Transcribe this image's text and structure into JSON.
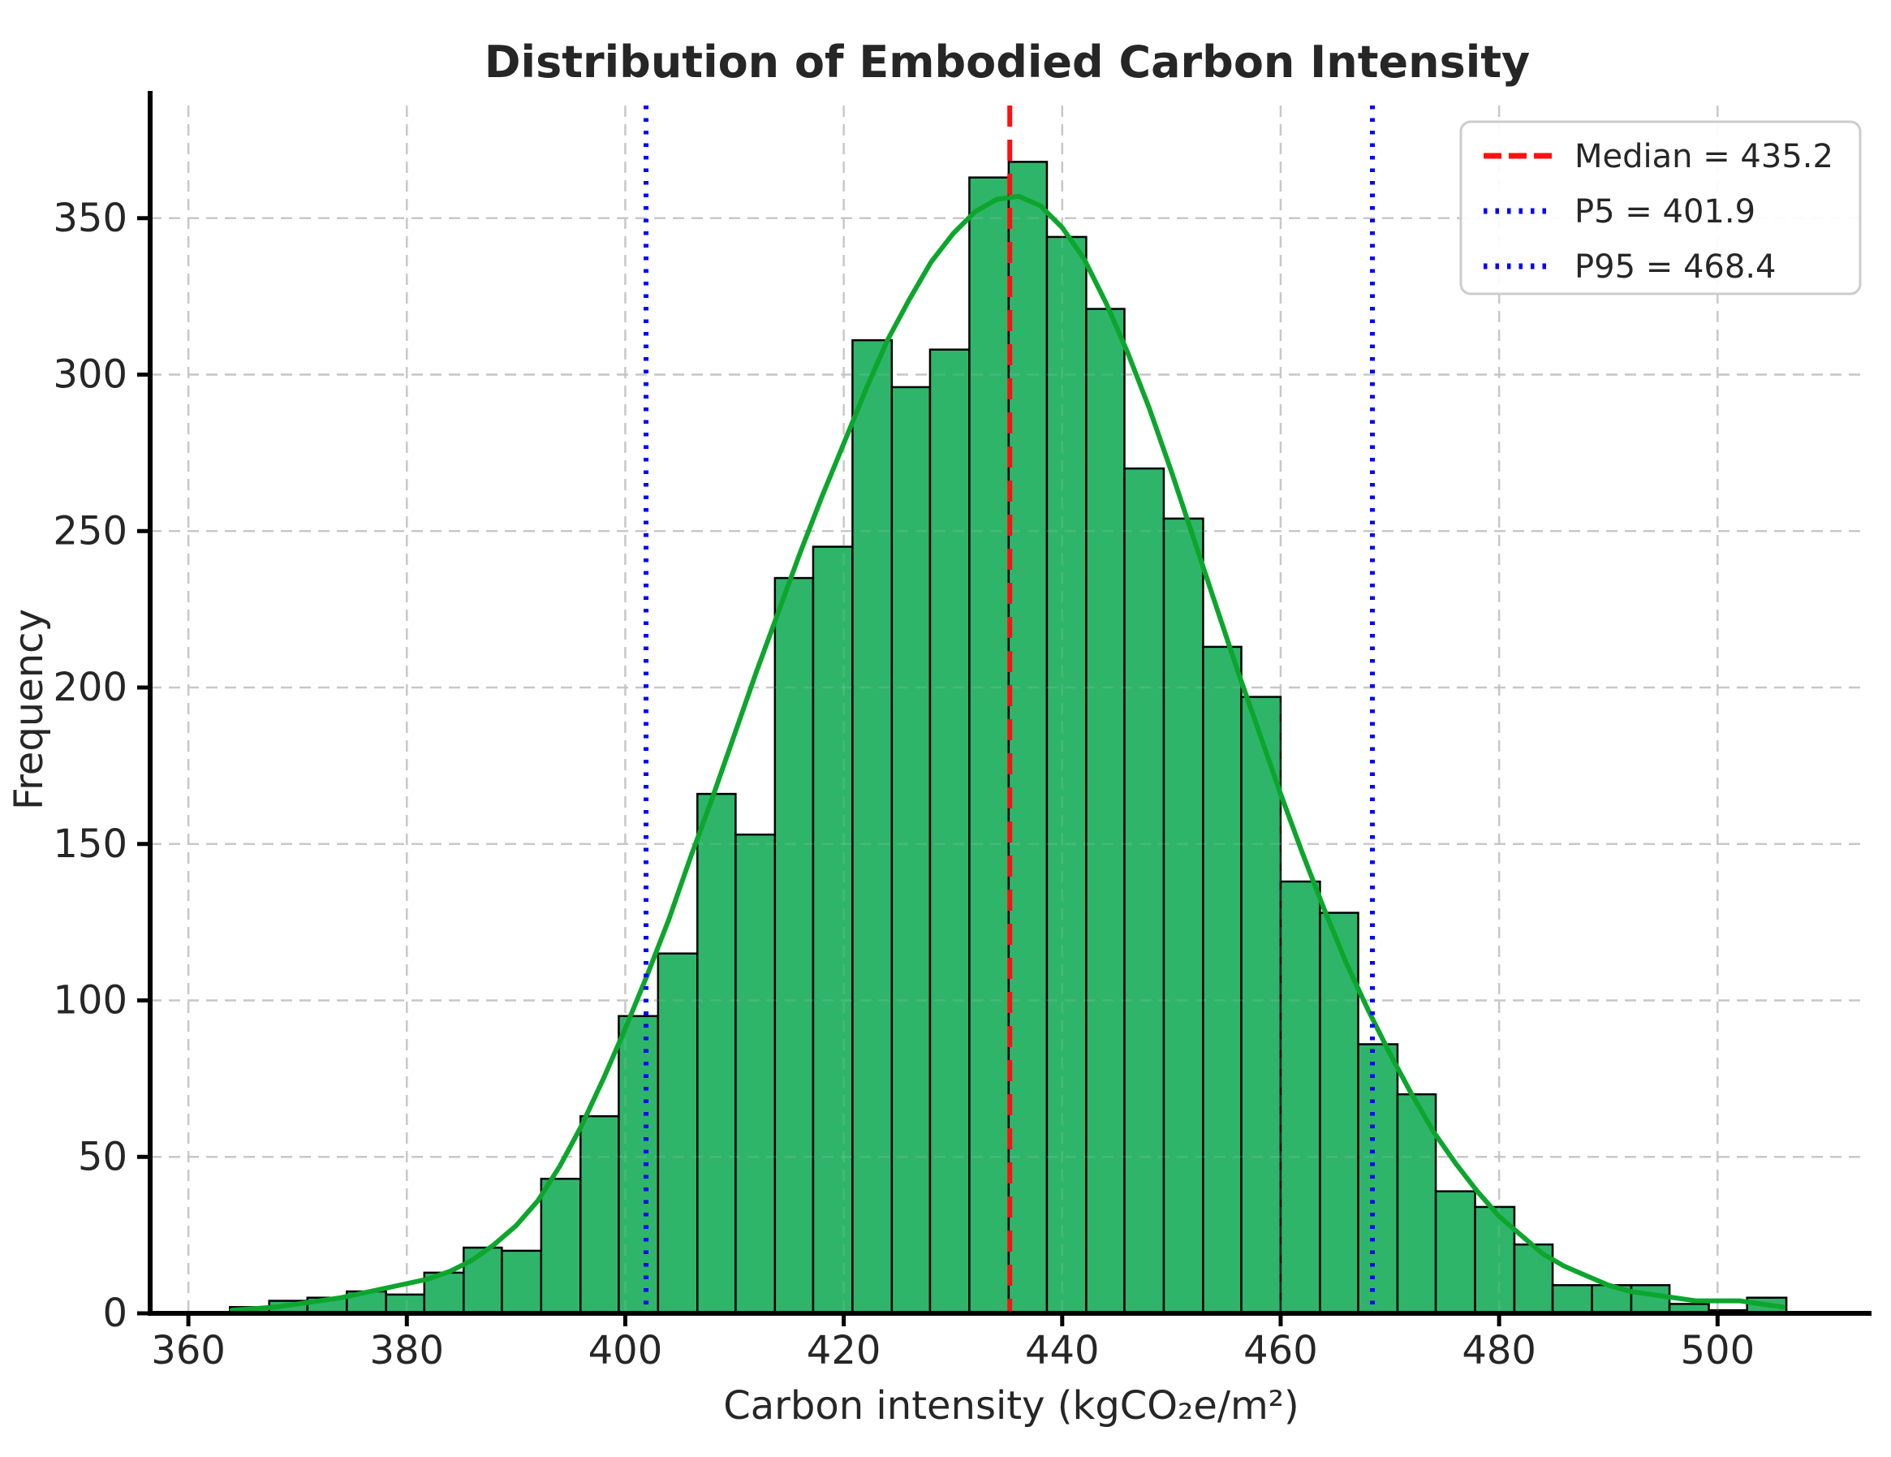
{
  "title": "Distribution of Embodied Carbon Intensity",
  "axes": {
    "xlabel": "Carbon intensity (kgCO₂e/m²)",
    "ylabel": "Frequency",
    "x_ticks": [
      360,
      380,
      400,
      420,
      440,
      460,
      480,
      500
    ],
    "y_ticks": [
      0,
      50,
      100,
      150,
      200,
      250,
      300,
      350
    ]
  },
  "legend": {
    "items": [
      {
        "name": "median",
        "label": "Median = 435.2",
        "color": "#ff1111",
        "style": "dashed"
      },
      {
        "name": "p5",
        "label": "P5 = 401.9",
        "color": "#0000ff",
        "style": "dotted"
      },
      {
        "name": "p95",
        "label": "P95 = 468.4",
        "color": "#0000ff",
        "style": "dotted"
      }
    ]
  },
  "chart_data": {
    "type": "bar",
    "subtype": "histogram-with-kde",
    "title": "Distribution of Embodied Carbon Intensity",
    "xlabel": "Carbon intensity (kgCO₂e/m²)",
    "ylabel": "Frequency",
    "xlim": [
      356.5,
      513.5
    ],
    "ylim": [
      0,
      386
    ],
    "grid": "dashed-both-axes",
    "legend_position": "upper-right",
    "bin_edges": [
      363.8,
      367.4,
      370.9,
      374.5,
      378.1,
      381.6,
      385.2,
      388.7,
      392.3,
      395.9,
      399.4,
      403.0,
      406.6,
      410.1,
      413.7,
      417.2,
      420.8,
      424.4,
      427.9,
      431.5,
      435.1,
      438.6,
      442.2,
      445.7,
      449.3,
      452.9,
      456.4,
      460.0,
      463.6,
      467.1,
      470.7,
      474.2,
      477.8,
      481.4,
      484.9,
      488.5,
      492.1,
      495.6,
      499.2,
      502.7,
      506.3
    ],
    "frequencies": [
      2,
      4,
      5,
      7,
      6,
      13,
      21,
      20,
      43,
      63,
      95,
      115,
      166,
      153,
      235,
      245,
      311,
      296,
      308,
      363,
      368,
      344,
      321,
      270,
      254,
      213,
      197,
      138,
      128,
      86,
      70,
      39,
      34,
      22,
      9,
      9,
      9,
      3,
      1,
      5
    ],
    "kde_curve": {
      "x": [
        364,
        366,
        368,
        370,
        372,
        374,
        376,
        378,
        380,
        382,
        384,
        386,
        388,
        390,
        392,
        394,
        396,
        398,
        400,
        402,
        404,
        406,
        408,
        410,
        412,
        414,
        416,
        418,
        420,
        422,
        424,
        426,
        428,
        430,
        432,
        434,
        436,
        438,
        440,
        442,
        444,
        446,
        448,
        450,
        452,
        454,
        456,
        458,
        460,
        462,
        464,
        466,
        468,
        470,
        472,
        474,
        476,
        478,
        480,
        482,
        484,
        486,
        488,
        490,
        492,
        494,
        496,
        498,
        500,
        502,
        504,
        506
      ],
      "y": [
        1,
        1.5,
        2,
        3,
        4,
        5,
        6.5,
        8,
        9.5,
        11,
        13.5,
        17,
        22,
        28,
        36,
        47,
        60,
        75,
        91,
        108,
        126,
        146,
        165,
        185,
        205,
        224,
        243,
        261,
        278,
        295,
        311,
        324,
        336,
        345,
        352,
        356,
        357,
        354,
        347,
        337,
        323,
        307,
        289,
        269,
        248,
        227,
        206,
        186,
        166,
        147,
        129,
        112,
        97,
        83,
        70,
        58,
        48,
        39,
        31,
        25,
        19,
        15,
        12,
        9,
        7,
        6,
        5,
        4,
        4,
        4,
        3,
        2
      ]
    },
    "vlines": [
      {
        "name": "median",
        "x": 435.2,
        "color": "#ff1111",
        "style": "dashed",
        "label": "Median = 435.2"
      },
      {
        "name": "p5",
        "x": 401.9,
        "color": "#0000ff",
        "style": "dotted",
        "label": "P5 = 401.9"
      },
      {
        "name": "p95",
        "x": 468.4,
        "color": "#0000ff",
        "style": "dotted",
        "label": "P95 = 468.4"
      }
    ],
    "colors": {
      "bar_fill": "#2eb56a",
      "bar_edge": "#000000",
      "kde_line": "#0ca62c",
      "grid": "#c4c4c4",
      "spine": "#000000",
      "text": "#262626",
      "legend_border": "#cccccc",
      "legend_bg": "#ffffff"
    }
  }
}
